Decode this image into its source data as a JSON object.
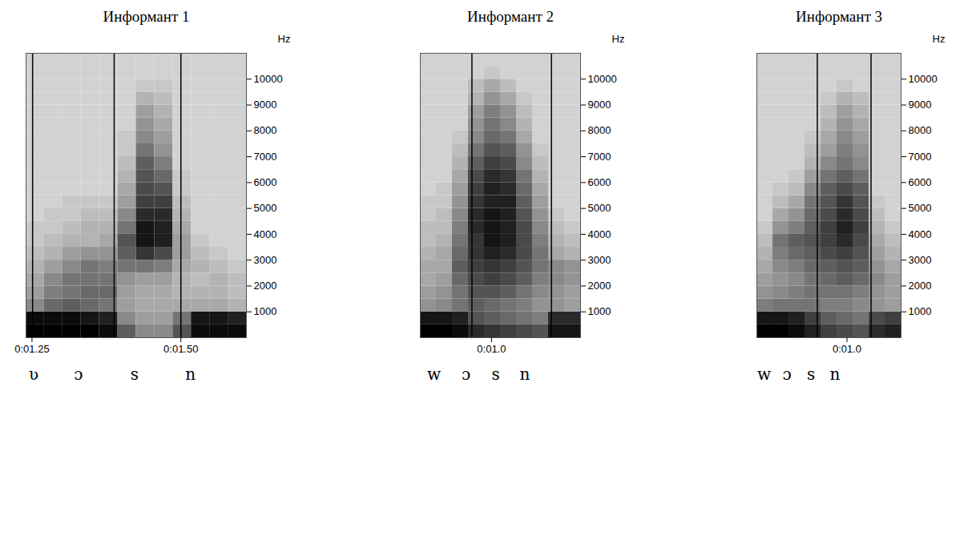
{
  "chart_data": [
    {
      "type": "heatmap",
      "title": "Информант 1",
      "y_label": "Hz",
      "xlim": [
        1.24,
        1.61
      ],
      "xticks": [
        {
          "value": 1.25,
          "label": "0:01.25"
        },
        {
          "value": 1.5,
          "label": "0:01.50"
        }
      ],
      "ylim": [
        0,
        11000
      ],
      "yticks": [
        1000,
        2000,
        3000,
        4000,
        5000,
        6000,
        7000,
        8000,
        9000,
        10000
      ],
      "zlim": [
        0,
        100
      ],
      "boundaries": [
        1.251,
        1.388,
        1.5
      ],
      "segments": [
        {
          "label": "ʋ",
          "x": 1.253
        },
        {
          "label": "ɔ",
          "x": 1.328
        },
        {
          "label": "s",
          "x": 1.422
        },
        {
          "label": "n",
          "x": 1.516
        }
      ],
      "time_edges": [
        1.24,
        1.2708,
        1.3017,
        1.3325,
        1.3633,
        1.3942,
        1.425,
        1.4558,
        1.4867,
        1.5175,
        1.5483,
        1.5792,
        1.61
      ],
      "freq_edges": [
        0,
        500,
        1000,
        1500,
        2000,
        2500,
        3000,
        3500,
        4000,
        4500,
        5000,
        5500,
        6000,
        6500,
        7000,
        7500,
        8000,
        8500,
        9000,
        9500,
        10000,
        10500,
        11000
      ],
      "z": [
        [
          100,
          95,
          35,
          25,
          20,
          15,
          10,
          5,
          5,
          0,
          0,
          0,
          0,
          0,
          0,
          0,
          0,
          0,
          0,
          0,
          0,
          0
        ],
        [
          100,
          95,
          50,
          40,
          35,
          25,
          15,
          10,
          5,
          5,
          0,
          0,
          0,
          0,
          0,
          0,
          0,
          0,
          0,
          0,
          0,
          0
        ],
        [
          100,
          95,
          55,
          45,
          45,
          35,
          25,
          15,
          10,
          5,
          5,
          0,
          0,
          0,
          0,
          0,
          0,
          0,
          0,
          0,
          0,
          0
        ],
        [
          100,
          90,
          50,
          50,
          45,
          45,
          30,
          15,
          15,
          10,
          5,
          0,
          0,
          0,
          0,
          0,
          0,
          0,
          0,
          0,
          0,
          0
        ],
        [
          95,
          85,
          45,
          50,
          45,
          40,
          30,
          20,
          15,
          10,
          5,
          0,
          0,
          0,
          0,
          0,
          0,
          0,
          0,
          0,
          0,
          0
        ],
        [
          55,
          35,
          25,
          25,
          30,
          45,
          55,
          60,
          45,
          35,
          25,
          20,
          15,
          10,
          5,
          5,
          0,
          0,
          0,
          0,
          0,
          0
        ],
        [
          35,
          25,
          20,
          20,
          25,
          45,
          75,
          90,
          90,
          80,
          70,
          65,
          60,
          55,
          45,
          35,
          30,
          25,
          15,
          5,
          0,
          0
        ],
        [
          35,
          25,
          20,
          20,
          25,
          40,
          65,
          85,
          85,
          80,
          70,
          60,
          50,
          40,
          30,
          25,
          20,
          15,
          10,
          5,
          0,
          0
        ],
        [
          60,
          45,
          20,
          15,
          15,
          20,
          25,
          25,
          20,
          15,
          10,
          5,
          5,
          0,
          0,
          0,
          0,
          0,
          0,
          0,
          0,
          0
        ],
        [
          95,
          90,
          20,
          15,
          10,
          15,
          10,
          5,
          0,
          0,
          0,
          0,
          0,
          0,
          0,
          0,
          0,
          0,
          0,
          0,
          0,
          0
        ],
        [
          95,
          90,
          20,
          15,
          15,
          10,
          5,
          0,
          0,
          0,
          0,
          0,
          0,
          0,
          0,
          0,
          0,
          0,
          0,
          0,
          0,
          0
        ],
        [
          95,
          85,
          15,
          10,
          10,
          5,
          0,
          0,
          0,
          0,
          0,
          0,
          0,
          0,
          0,
          0,
          0,
          0,
          0,
          0,
          0,
          0
        ]
      ]
    },
    {
      "type": "heatmap",
      "title": "Информант 2",
      "y_label": "Hz",
      "xlim": [
        0.88,
        1.15
      ],
      "xticks": [
        {
          "value": 1.0,
          "label": "0:01.0"
        }
      ],
      "ylim": [
        0,
        11000
      ],
      "yticks": [
        1000,
        2000,
        3000,
        4000,
        5000,
        6000,
        7000,
        8000,
        9000,
        10000
      ],
      "zlim": [
        0,
        100
      ],
      "boundaries": [
        0.967,
        1.101
      ],
      "segments": [
        {
          "label": "w",
          "x": 0.903
        },
        {
          "label": "ɔ",
          "x": 0.957
        },
        {
          "label": "s",
          "x": 1.007
        },
        {
          "label": "n",
          "x": 1.056
        }
      ],
      "time_edges": [
        0.88,
        0.907,
        0.934,
        0.961,
        0.988,
        1.015,
        1.042,
        1.069,
        1.096,
        1.123,
        1.15
      ],
      "freq_edges": [
        0,
        500,
        1000,
        1500,
        2000,
        2500,
        3000,
        3500,
        4000,
        4500,
        5000,
        5500,
        6000,
        6500,
        7000,
        7500,
        8000,
        8500,
        9000,
        9500,
        10000,
        10500,
        11000
      ],
      "z": [
        [
          100,
          90,
          30,
          25,
          20,
          20,
          15,
          10,
          10,
          5,
          5,
          0,
          0,
          0,
          0,
          0,
          0,
          0,
          0,
          0,
          0,
          0
        ],
        [
          100,
          90,
          35,
          30,
          25,
          20,
          20,
          15,
          10,
          10,
          5,
          5,
          0,
          0,
          0,
          0,
          0,
          0,
          0,
          0,
          0,
          0
        ],
        [
          95,
          85,
          45,
          45,
          50,
          55,
          50,
          45,
          40,
          35,
          30,
          25,
          20,
          15,
          10,
          5,
          0,
          0,
          0,
          0,
          0,
          0
        ],
        [
          80,
          60,
          55,
          60,
          65,
          70,
          75,
          75,
          80,
          80,
          75,
          70,
          65,
          55,
          45,
          35,
          30,
          25,
          15,
          10,
          0,
          0
        ],
        [
          75,
          55,
          50,
          60,
          70,
          75,
          85,
          90,
          90,
          90,
          85,
          85,
          80,
          70,
          60,
          50,
          45,
          40,
          30,
          20,
          5,
          0
        ],
        [
          70,
          50,
          45,
          55,
          65,
          70,
          80,
          85,
          85,
          85,
          85,
          80,
          75,
          65,
          55,
          45,
          35,
          30,
          20,
          10,
          0,
          0
        ],
        [
          65,
          45,
          40,
          45,
          55,
          60,
          65,
          65,
          65,
          60,
          55,
          50,
          45,
          35,
          30,
          20,
          15,
          10,
          5,
          0,
          0,
          0
        ],
        [
          60,
          40,
          30,
          35,
          40,
          45,
          45,
          40,
          35,
          30,
          25,
          20,
          15,
          10,
          5,
          0,
          0,
          0,
          0,
          0,
          0,
          0
        ],
        [
          90,
          80,
          30,
          30,
          35,
          35,
          20,
          15,
          10,
          5,
          0,
          0,
          0,
          0,
          0,
          0,
          0,
          0,
          0,
          0,
          0,
          0
        ],
        [
          90,
          80,
          25,
          25,
          30,
          30,
          15,
          10,
          5,
          0,
          0,
          0,
          0,
          0,
          0,
          0,
          0,
          0,
          0,
          0,
          0,
          0
        ]
      ]
    },
    {
      "type": "heatmap",
      "title": "Информант 3",
      "y_label": "Hz",
      "xlim": [
        0.85,
        1.09
      ],
      "xticks": [
        {
          "value": 1.0,
          "label": "0:01.0"
        }
      ],
      "ylim": [
        0,
        11000
      ],
      "yticks": [
        1000,
        2000,
        3000,
        4000,
        5000,
        6000,
        7000,
        8000,
        9000,
        10000
      ],
      "zlim": [
        0,
        100
      ],
      "boundaries": [
        0.9506,
        1.04
      ],
      "segments": [
        {
          "label": "w",
          "x": 0.862
        },
        {
          "label": "ɔ",
          "x": 0.9
        },
        {
          "label": "s",
          "x": 0.94
        },
        {
          "label": "n",
          "x": 0.98
        }
      ],
      "time_edges": [
        0.85,
        0.8767,
        0.9033,
        0.93,
        0.9567,
        0.9833,
        1.01,
        1.0367,
        1.0633,
        1.09
      ],
      "freq_edges": [
        0,
        500,
        1000,
        1500,
        2000,
        2500,
        3000,
        3500,
        4000,
        4500,
        5000,
        5500,
        6000,
        6500,
        7000,
        7500,
        8000,
        8500,
        9000,
        9500,
        10000,
        10500,
        11000
      ],
      "z": [
        [
          100,
          90,
          40,
          30,
          25,
          20,
          15,
          10,
          5,
          0,
          0,
          0,
          0,
          0,
          0,
          0,
          0,
          0,
          0,
          0,
          0,
          0
        ],
        [
          100,
          90,
          45,
          35,
          30,
          35,
          40,
          45,
          30,
          20,
          10,
          5,
          0,
          0,
          0,
          0,
          0,
          0,
          0,
          0,
          0,
          0
        ],
        [
          95,
          85,
          45,
          40,
          35,
          40,
          50,
          55,
          40,
          30,
          20,
          10,
          5,
          0,
          0,
          0,
          0,
          0,
          0,
          0,
          0,
          0
        ],
        [
          85,
          70,
          45,
          45,
          45,
          50,
          55,
          60,
          55,
          50,
          45,
          35,
          25,
          15,
          10,
          5,
          0,
          0,
          0,
          0,
          0,
          0
        ],
        [
          70,
          55,
          40,
          45,
          50,
          55,
          65,
          70,
          70,
          65,
          60,
          55,
          45,
          35,
          25,
          20,
          15,
          10,
          5,
          0,
          0,
          0
        ],
        [
          65,
          50,
          40,
          45,
          55,
          60,
          70,
          80,
          85,
          80,
          75,
          65,
          55,
          45,
          40,
          35,
          30,
          25,
          15,
          5,
          0,
          0
        ],
        [
          60,
          45,
          35,
          40,
          50,
          55,
          60,
          65,
          70,
          65,
          60,
          55,
          45,
          35,
          30,
          25,
          20,
          15,
          10,
          0,
          0,
          0
        ],
        [
          80,
          65,
          30,
          30,
          35,
          30,
          25,
          20,
          15,
          10,
          5,
          0,
          0,
          0,
          0,
          0,
          0,
          0,
          0,
          0,
          0,
          0
        ],
        [
          85,
          70,
          25,
          25,
          25,
          20,
          15,
          10,
          5,
          0,
          0,
          0,
          0,
          0,
          0,
          0,
          0,
          0,
          0,
          0,
          0,
          0
        ]
      ]
    }
  ]
}
